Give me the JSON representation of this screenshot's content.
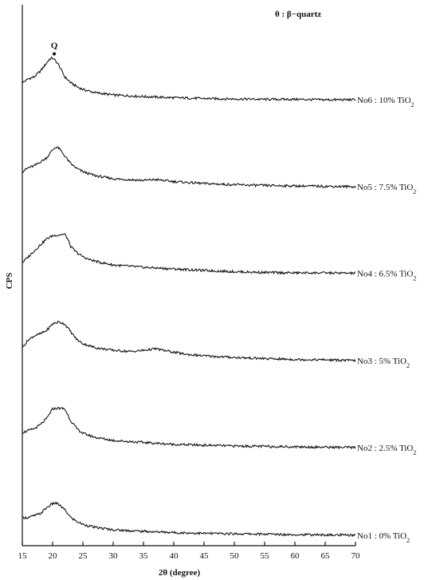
{
  "chart_data": {
    "type": "line",
    "xlabel": "2θ (degree)",
    "ylabel": "CPS",
    "xlim": [
      15,
      70
    ],
    "xticks": [
      15,
      20,
      25,
      30,
      35,
      40,
      45,
      50,
      55,
      60,
      65,
      70
    ],
    "legend_text": "θ : β−quartz",
    "peak_marker_label": "Q",
    "peak_marker_x": 20,
    "series": [
      {
        "name": "No6 : 10% TiO2",
        "label_sub_prefix": "No6 : 10% TiO",
        "label_sub": "2",
        "offset": 5,
        "x": [
          15,
          16,
          17,
          18,
          19,
          19.5,
          20,
          20.5,
          21,
          21.5,
          22,
          23,
          24,
          25,
          27,
          30,
          35,
          40,
          45,
          50,
          55,
          60,
          65,
          70
        ],
        "y": [
          0.45,
          0.55,
          0.6,
          0.75,
          0.95,
          1.05,
          1.08,
          1.0,
          0.9,
          0.75,
          0.6,
          0.45,
          0.35,
          0.28,
          0.2,
          0.14,
          0.1,
          0.07,
          0.05,
          0.04,
          0.03,
          0.03,
          0.02,
          0.02
        ]
      },
      {
        "name": "No5 : 7.5% TiO2",
        "label_sub_prefix": "No5 : 7.5% TiO",
        "label_sub": "2",
        "offset": 4,
        "x": [
          15,
          16,
          17,
          18,
          19,
          20,
          20.5,
          21,
          21.5,
          22,
          23,
          24,
          25,
          27,
          30,
          35,
          37,
          40,
          45,
          50,
          55,
          60,
          65,
          70
        ],
        "y": [
          0.4,
          0.5,
          0.55,
          0.65,
          0.75,
          0.95,
          1.02,
          1.0,
          0.9,
          0.8,
          0.6,
          0.48,
          0.4,
          0.3,
          0.22,
          0.18,
          0.2,
          0.15,
          0.1,
          0.07,
          0.05,
          0.04,
          0.03,
          0.02
        ]
      },
      {
        "name": "No4 : 6.5% TiO2",
        "label_sub_prefix": "No4 : 6.5% TiO",
        "label_sub": "2",
        "offset": 3,
        "x": [
          15,
          16,
          17,
          18,
          19,
          20,
          21,
          22,
          22.5,
          23,
          24,
          25,
          26,
          28,
          30,
          35,
          40,
          45,
          50,
          55,
          60,
          65,
          70
        ],
        "y": [
          0.3,
          0.45,
          0.6,
          0.75,
          0.9,
          0.98,
          1.0,
          1.02,
          0.9,
          0.7,
          0.55,
          0.45,
          0.38,
          0.3,
          0.24,
          0.18,
          0.14,
          0.1,
          0.07,
          0.05,
          0.04,
          0.04,
          0.03
        ]
      },
      {
        "name": "No3 : 5% TiO2",
        "label_sub_prefix": "No3 : 5% TiO",
        "label_sub": "2",
        "offset": 2,
        "x": [
          15,
          16,
          17,
          18,
          19,
          20,
          21,
          22,
          23,
          24,
          25,
          27,
          30,
          33,
          35,
          37,
          39,
          42,
          45,
          50,
          55,
          60,
          65,
          70
        ],
        "y": [
          0.35,
          0.55,
          0.65,
          0.7,
          0.78,
          0.95,
          1.0,
          0.95,
          0.75,
          0.55,
          0.45,
          0.35,
          0.28,
          0.25,
          0.28,
          0.32,
          0.26,
          0.18,
          0.14,
          0.1,
          0.07,
          0.05,
          0.04,
          0.02
        ]
      },
      {
        "name": "No2 : 2.5% TiO2",
        "label_sub_prefix": "No2 : 2.5% TiO",
        "label_sub": "2",
        "offset": 1,
        "x": [
          15,
          16,
          17,
          18,
          19,
          20,
          21,
          22,
          23,
          24,
          25,
          27,
          30,
          35,
          40,
          45,
          50,
          55,
          60,
          65,
          70
        ],
        "y": [
          0.4,
          0.45,
          0.5,
          0.6,
          0.75,
          1.0,
          1.02,
          1.0,
          0.7,
          0.5,
          0.38,
          0.28,
          0.2,
          0.15,
          0.1,
          0.08,
          0.06,
          0.05,
          0.04,
          0.03,
          0.02
        ]
      },
      {
        "name": "No1 : 0% TiO2",
        "label_sub_prefix": "No1 : 0% TiO",
        "label_sub": "2",
        "offset": 0,
        "x": [
          15,
          16,
          17,
          18,
          19,
          20,
          20.5,
          21,
          22,
          23,
          24,
          25,
          27,
          30,
          35,
          40,
          45,
          50,
          55,
          60,
          65,
          70
        ],
        "y": [
          0.45,
          0.45,
          0.5,
          0.55,
          0.7,
          0.8,
          0.82,
          0.78,
          0.65,
          0.45,
          0.35,
          0.28,
          0.2,
          0.14,
          0.1,
          0.07,
          0.05,
          0.04,
          0.03,
          0.02,
          0.01,
          0.0
        ]
      }
    ]
  }
}
